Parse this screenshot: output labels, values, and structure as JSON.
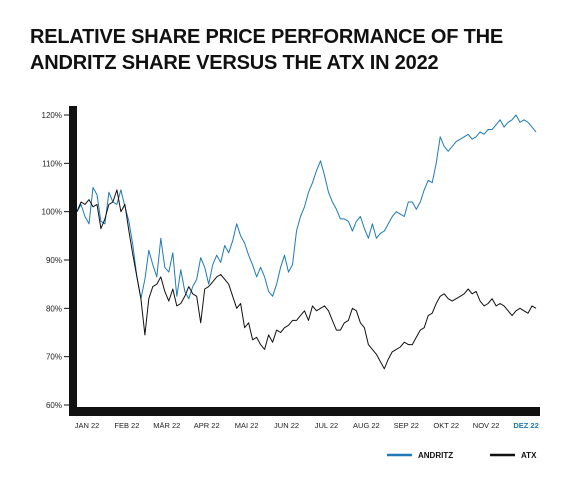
{
  "chart_data": {
    "type": "line",
    "title_lines": [
      "RELATIVE SHARE PRICE PERFORMANCE OF THE",
      "ANDRITZ SHARE VERSUS THE ATX IN 2022"
    ],
    "x_tick_labels": [
      "JAN 22",
      "FEB 22",
      "MÄR 22",
      "APR 22",
      "MAI 22",
      "JUN 22",
      "JUL 22",
      "AUG 22",
      "SEP 22",
      "OKT 22",
      "NOV 22",
      "DEZ 22"
    ],
    "highlight_tick": "DEZ 22",
    "y_tick_labels": [
      "60%",
      "70%",
      "80%",
      "90%",
      "100%",
      "110%",
      "120%"
    ],
    "ylim": [
      60,
      120
    ],
    "xlim": [
      0,
      11.55
    ],
    "grid": false,
    "legend_position": "bottom-right",
    "series": [
      {
        "name": "ANDRITZ",
        "color": "#1f7ab6",
        "x": [
          0,
          0.1,
          0.2,
          0.3,
          0.4,
          0.5,
          0.6,
          0.7,
          0.8,
          0.9,
          1.0,
          1.1,
          1.2,
          1.3,
          1.4,
          1.5,
          1.6,
          1.7,
          1.8,
          1.9,
          2.0,
          2.1,
          2.2,
          2.3,
          2.4,
          2.5,
          2.6,
          2.7,
          2.8,
          2.9,
          3.0,
          3.1,
          3.2,
          3.3,
          3.4,
          3.5,
          3.6,
          3.7,
          3.8,
          3.9,
          4.0,
          4.1,
          4.2,
          4.3,
          4.4,
          4.5,
          4.6,
          4.7,
          4.8,
          4.9,
          5.0,
          5.1,
          5.2,
          5.3,
          5.4,
          5.5,
          5.6,
          5.7,
          5.8,
          5.9,
          6.0,
          6.1,
          6.2,
          6.3,
          6.4,
          6.5,
          6.6,
          6.7,
          6.8,
          6.9,
          7.0,
          7.1,
          7.2,
          7.3,
          7.4,
          7.5,
          7.6,
          7.7,
          7.8,
          7.9,
          8.0,
          8.1,
          8.2,
          8.3,
          8.4,
          8.5,
          8.6,
          8.7,
          8.8,
          8.9,
          9.0,
          9.1,
          9.2,
          9.3,
          9.4,
          9.5,
          9.6,
          9.7,
          9.8,
          9.9,
          10.0,
          10.1,
          10.2,
          10.3,
          10.4,
          10.5,
          10.6,
          10.7,
          10.8,
          10.9,
          11.0,
          11.1,
          11.2,
          11.3,
          11.4,
          11.5
        ],
        "values": [
          100.0,
          101.5,
          99.0,
          97.5,
          105.0,
          103.5,
          98.0,
          97.5,
          104.0,
          102.0,
          101.5,
          104.5,
          101.0,
          98.0,
          93.0,
          86.5,
          82.0,
          86.0,
          92.0,
          89.0,
          86.5,
          94.5,
          88.5,
          87.5,
          91.5,
          82.5,
          88.0,
          83.5,
          82.0,
          84.5,
          86.0,
          90.5,
          88.5,
          85.0,
          89.0,
          91.0,
          89.5,
          93.0,
          91.5,
          94.0,
          97.5,
          95.0,
          93.5,
          91.0,
          89.0,
          86.5,
          88.5,
          86.5,
          83.5,
          82.5,
          85.0,
          88.5,
          91.0,
          87.5,
          89.0,
          96.0,
          99.0,
          101.0,
          104.0,
          106.0,
          108.5,
          110.5,
          107.5,
          104.0,
          102.0,
          100.5,
          98.5,
          98.5,
          98.0,
          96.0,
          98.0,
          99.0,
          96.5,
          94.5,
          97.5,
          94.5,
          95.5,
          96.0,
          97.5,
          99.0,
          100.0,
          99.5,
          99.0,
          102.0,
          102.0,
          100.5,
          102.0,
          104.5,
          106.5,
          106.0,
          110.0,
          115.5,
          113.5,
          112.5,
          113.5,
          114.5,
          115.0,
          115.5,
          116.0,
          115.0,
          115.5,
          116.5,
          116.0,
          117.0,
          117.0,
          118.0,
          119.0,
          117.5,
          118.5,
          119.0,
          120.0,
          118.5,
          119.0,
          118.5,
          117.5,
          116.5
        ]
      },
      {
        "name": "ATX",
        "color": "#111111",
        "x": [
          0,
          0.1,
          0.2,
          0.3,
          0.4,
          0.5,
          0.6,
          0.7,
          0.8,
          0.9,
          1.0,
          1.1,
          1.2,
          1.3,
          1.4,
          1.5,
          1.6,
          1.7,
          1.8,
          1.9,
          2.0,
          2.1,
          2.2,
          2.3,
          2.4,
          2.5,
          2.6,
          2.7,
          2.8,
          2.9,
          3.0,
          3.1,
          3.2,
          3.3,
          3.4,
          3.5,
          3.6,
          3.7,
          3.8,
          3.9,
          4.0,
          4.1,
          4.2,
          4.3,
          4.4,
          4.5,
          4.6,
          4.7,
          4.8,
          4.9,
          5.0,
          5.1,
          5.2,
          5.3,
          5.4,
          5.5,
          5.6,
          5.7,
          5.8,
          5.9,
          6.0,
          6.1,
          6.2,
          6.3,
          6.4,
          6.5,
          6.6,
          6.7,
          6.8,
          6.9,
          7.0,
          7.1,
          7.2,
          7.3,
          7.4,
          7.5,
          7.6,
          7.7,
          7.8,
          7.9,
          8.0,
          8.1,
          8.2,
          8.3,
          8.4,
          8.5,
          8.6,
          8.7,
          8.8,
          8.9,
          9.0,
          9.1,
          9.2,
          9.3,
          9.4,
          9.5,
          9.6,
          9.7,
          9.8,
          9.9,
          10.0,
          10.1,
          10.2,
          10.3,
          10.4,
          10.5,
          10.6,
          10.7,
          10.8,
          10.9,
          11.0,
          11.1,
          11.2,
          11.3,
          11.4,
          11.5
        ],
        "values": [
          100.0,
          102.0,
          101.5,
          102.5,
          101.0,
          101.5,
          96.5,
          98.5,
          101.5,
          102.0,
          104.5,
          100.0,
          101.5,
          96.0,
          91.0,
          86.5,
          82.0,
          74.5,
          82.0,
          84.5,
          85.0,
          86.5,
          83.5,
          81.5,
          84.0,
          80.5,
          81.0,
          82.5,
          84.5,
          83.0,
          82.5,
          77.0,
          84.0,
          84.5,
          85.5,
          86.5,
          87.0,
          86.0,
          85.0,
          82.5,
          80.0,
          81.0,
          76.0,
          77.0,
          73.5,
          74.0,
          72.5,
          71.5,
          74.5,
          73.0,
          75.5,
          75.0,
          76.0,
          76.5,
          77.5,
          77.5,
          78.5,
          79.5,
          77.5,
          80.5,
          79.5,
          80.0,
          80.5,
          79.5,
          77.5,
          75.5,
          75.5,
          77.0,
          77.5,
          80.0,
          79.5,
          77.0,
          76.0,
          72.5,
          71.5,
          70.5,
          69.0,
          67.5,
          69.5,
          71.0,
          71.5,
          72.0,
          73.0,
          72.5,
          72.5,
          74.0,
          75.5,
          76.0,
          78.5,
          79.0,
          81.0,
          82.5,
          83.0,
          82.0,
          81.5,
          82.0,
          82.5,
          83.0,
          84.0,
          83.0,
          83.5,
          81.5,
          80.5,
          81.0,
          82.0,
          80.5,
          81.0,
          80.5,
          79.5,
          78.5,
          79.5,
          80.0,
          79.5,
          79.0,
          80.5,
          80.0
        ]
      }
    ]
  }
}
